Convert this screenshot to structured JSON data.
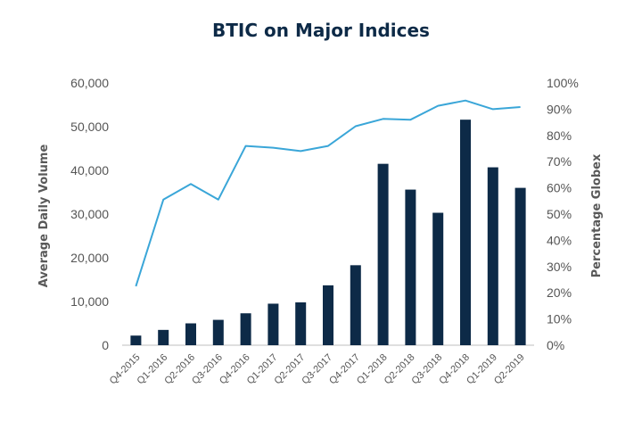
{
  "chart_data": {
    "type": "bar",
    "title": "BTIC on Major Indices",
    "categories": [
      "Q4-2015",
      "Q1-2016",
      "Q2-2016",
      "Q3-2016",
      "Q4-2016",
      "Q1-2017",
      "Q2-2017",
      "Q3-2017",
      "Q4-2017",
      "Q1-2018",
      "Q2-2018",
      "Q3-2018",
      "Q4-2018",
      "Q1-2019",
      "Q2-2019"
    ],
    "series": [
      {
        "type": "bar",
        "axis": "left",
        "color": "#0d2a47",
        "values": [
          2200,
          3500,
          5000,
          5800,
          7300,
          9500,
          9800,
          13700,
          18300,
          41500,
          35600,
          30300,
          51600,
          40700,
          36000
        ]
      },
      {
        "type": "line",
        "axis": "right",
        "color": "#3aa6d8",
        "values": [
          22.5,
          55.5,
          61.5,
          55.5,
          76,
          75.3,
          74,
          76,
          83.5,
          86.3,
          86,
          91.3,
          93.3,
          90,
          90.8
        ]
      }
    ],
    "ylabel": "Average Daily Volume",
    "ylabel_right": "Percentage Globex",
    "ylim": [
      0,
      60000
    ],
    "ylim_right": [
      0,
      100
    ],
    "yticks": [
      "0",
      "10,000",
      "20,000",
      "30,000",
      "40,000",
      "50,000",
      "60,000"
    ],
    "yticks_right": [
      "0%",
      "10%",
      "20%",
      "30%",
      "40%",
      "50%",
      "60%",
      "70%",
      "80%",
      "90%",
      "100%"
    ],
    "grid": false,
    "legend": "none"
  }
}
